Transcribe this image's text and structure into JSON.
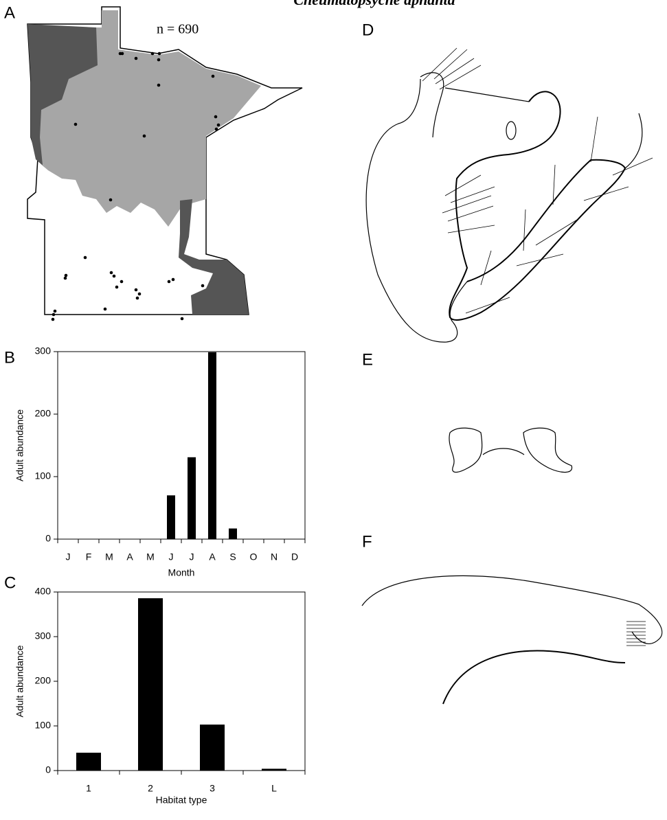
{
  "title": "Cheumatopsyche aphanta",
  "panels": [
    "A",
    "B",
    "C",
    "D",
    "E",
    "F"
  ],
  "map": {
    "label": "n = 690"
  },
  "chart_data": [
    {
      "type": "bar",
      "categories": [
        "J",
        "F",
        "M",
        "A",
        "M",
        "J",
        "J",
        "A",
        "S",
        "O",
        "N",
        "D"
      ],
      "values": [
        0,
        0,
        0,
        0,
        0,
        70,
        131,
        299,
        17,
        0,
        0,
        0
      ],
      "color": "#000000",
      "xlabel": "Month",
      "ylabel": "Adult abundance",
      "ylim": [
        0,
        300
      ],
      "yticks": [
        0,
        100,
        200,
        300
      ]
    },
    {
      "type": "bar",
      "categories": [
        "1",
        "2",
        "3",
        "L"
      ],
      "values": [
        40,
        386,
        103,
        4
      ],
      "color": "#000000",
      "xlabel": "Habitat type",
      "ylabel": "Adult abundance",
      "ylim": [
        0,
        400
      ],
      "yticks": [
        0,
        100,
        200,
        300,
        400
      ]
    }
  ]
}
